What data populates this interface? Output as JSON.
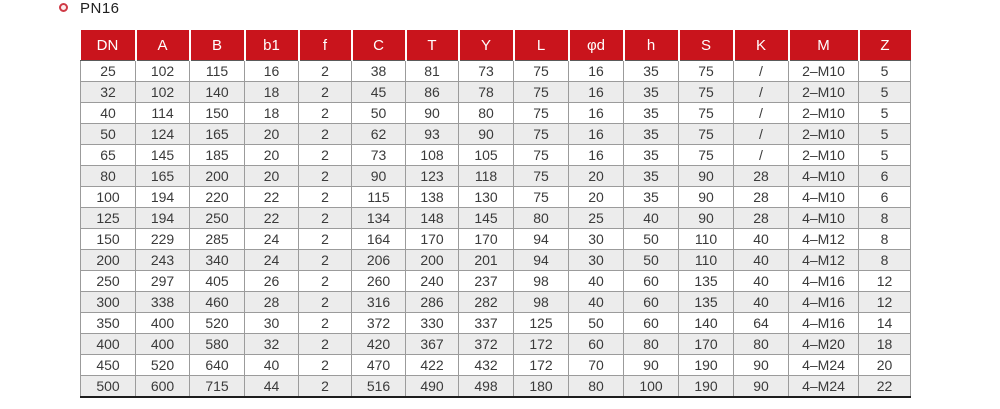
{
  "page": {
    "label": "PN16",
    "bullet_icon": "ring-bullet"
  },
  "colors": {
    "header_bg": "#c9141c",
    "header_text": "#ffffff",
    "row_alt_bg": "#ececec",
    "body_text": "#3a3a3a",
    "grid_line": "#9b9b9b",
    "bottom_rule": "#1d1d1d",
    "bullet_ring": "#cf3a46"
  },
  "table": {
    "columns": [
      "DN",
      "A",
      "B",
      "b1",
      "f",
      "C",
      "T",
      "Y",
      "L",
      "φd",
      "h",
      "S",
      "K",
      "M",
      "Z"
    ],
    "rows": [
      [
        "25",
        "102",
        "115",
        "16",
        "2",
        "38",
        "81",
        "73",
        "75",
        "16",
        "35",
        "75",
        "/",
        "2–M10",
        "5"
      ],
      [
        "32",
        "102",
        "140",
        "18",
        "2",
        "45",
        "86",
        "78",
        "75",
        "16",
        "35",
        "75",
        "/",
        "2–M10",
        "5"
      ],
      [
        "40",
        "114",
        "150",
        "18",
        "2",
        "50",
        "90",
        "80",
        "75",
        "16",
        "35",
        "75",
        "/",
        "2–M10",
        "5"
      ],
      [
        "50",
        "124",
        "165",
        "20",
        "2",
        "62",
        "93",
        "90",
        "75",
        "16",
        "35",
        "75",
        "/",
        "2–M10",
        "5"
      ],
      [
        "65",
        "145",
        "185",
        "20",
        "2",
        "73",
        "108",
        "105",
        "75",
        "16",
        "35",
        "75",
        "/",
        "2–M10",
        "5"
      ],
      [
        "80",
        "165",
        "200",
        "20",
        "2",
        "90",
        "123",
        "118",
        "75",
        "20",
        "35",
        "90",
        "28",
        "4–M10",
        "6"
      ],
      [
        "100",
        "194",
        "220",
        "22",
        "2",
        "115",
        "138",
        "130",
        "75",
        "20",
        "35",
        "90",
        "28",
        "4–M10",
        "6"
      ],
      [
        "125",
        "194",
        "250",
        "22",
        "2",
        "134",
        "148",
        "145",
        "80",
        "25",
        "40",
        "90",
        "28",
        "4–M10",
        "8"
      ],
      [
        "150",
        "229",
        "285",
        "24",
        "2",
        "164",
        "170",
        "170",
        "94",
        "30",
        "50",
        "110",
        "40",
        "4–M12",
        "8"
      ],
      [
        "200",
        "243",
        "340",
        "24",
        "2",
        "206",
        "200",
        "201",
        "94",
        "30",
        "50",
        "110",
        "40",
        "4–M12",
        "8"
      ],
      [
        "250",
        "297",
        "405",
        "26",
        "2",
        "260",
        "240",
        "237",
        "98",
        "40",
        "60",
        "135",
        "40",
        "4–M16",
        "12"
      ],
      [
        "300",
        "338",
        "460",
        "28",
        "2",
        "316",
        "286",
        "282",
        "98",
        "40",
        "60",
        "135",
        "40",
        "4–M16",
        "12"
      ],
      [
        "350",
        "400",
        "520",
        "30",
        "2",
        "372",
        "330",
        "337",
        "125",
        "50",
        "60",
        "140",
        "64",
        "4–M16",
        "14"
      ],
      [
        "400",
        "400",
        "580",
        "32",
        "2",
        "420",
        "367",
        "372",
        "172",
        "60",
        "80",
        "170",
        "80",
        "4–M20",
        "18"
      ],
      [
        "450",
        "520",
        "640",
        "40",
        "2",
        "470",
        "422",
        "432",
        "172",
        "70",
        "90",
        "190",
        "90",
        "4–M24",
        "20"
      ],
      [
        "500",
        "600",
        "715",
        "44",
        "2",
        "516",
        "490",
        "498",
        "180",
        "80",
        "100",
        "190",
        "90",
        "4–M24",
        "22"
      ]
    ]
  }
}
